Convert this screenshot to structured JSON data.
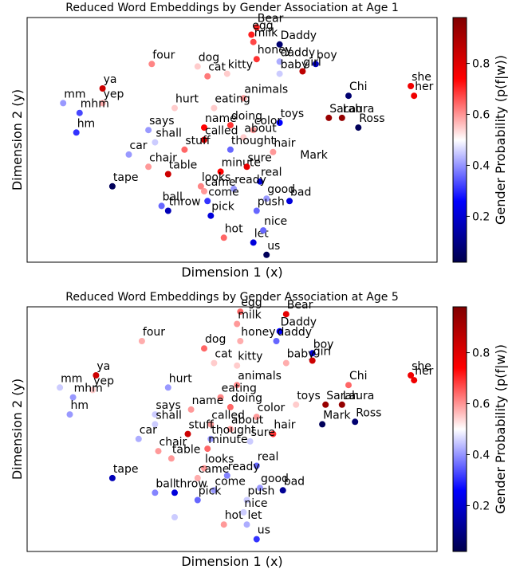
{
  "chart_data": [
    {
      "type": "scatter",
      "title": "Reduced Word Embeddings by Gender Association at Age 1",
      "xlabel": "Dimension 1 (x)",
      "ylabel": "Dimension 2 (y)",
      "xticks": [],
      "yticks": [],
      "colorbar": {
        "label": "Gender Probability (p(f|w))",
        "range": [
          0.02,
          0.98
        ],
        "ticks": [
          "0.2",
          "0.4",
          "0.6",
          "0.8"
        ],
        "colormap": "seismic"
      },
      "points": [
        {
          "word": "Bear",
          "x": 80,
          "y": 96,
          "p": 0.72
        },
        {
          "word": "egg",
          "x": 78.4,
          "y": 93,
          "p": 0.72
        },
        {
          "word": "Daddy",
          "x": 87,
          "y": 89,
          "p": 0.05
        },
        {
          "word": "milk",
          "x": 79,
          "y": 90,
          "p": 0.68
        },
        {
          "word": "four",
          "x": 48,
          "y": 81,
          "p": 0.62
        },
        {
          "word": "dog",
          "x": 62,
          "y": 80,
          "p": 0.55
        },
        {
          "word": "honey",
          "x": 80,
          "y": 83,
          "p": 0.7
        },
        {
          "word": "boy",
          "x": 98,
          "y": 81,
          "p": 0.15
        },
        {
          "word": "daddy",
          "x": 87,
          "y": 82,
          "p": 0.42
        },
        {
          "word": "cat",
          "x": 65,
          "y": 76,
          "p": 0.63
        },
        {
          "word": "kitty",
          "x": 71,
          "y": 77,
          "p": 0.55
        },
        {
          "word": "baby",
          "x": 87,
          "y": 77,
          "p": 0.45
        },
        {
          "word": "girl",
          "x": 94,
          "y": 78,
          "p": 0.88
        },
        {
          "word": "ya",
          "x": 33,
          "y": 71,
          "p": 0.85
        },
        {
          "word": "she",
          "x": 127,
          "y": 72,
          "p": 0.78
        },
        {
          "word": "yep",
          "x": 33,
          "y": 65,
          "p": 0.58
        },
        {
          "word": "mm",
          "x": 21,
          "y": 65,
          "p": 0.4
        },
        {
          "word": "hurt",
          "x": 55,
          "y": 63,
          "p": 0.55
        },
        {
          "word": "animals",
          "x": 76,
          "y": 67,
          "p": 0.6
        },
        {
          "word": "toys",
          "x": 87,
          "y": 57,
          "p": 0.25
        },
        {
          "word": "Chi",
          "x": 108,
          "y": 68,
          "p": 0.05
        },
        {
          "word": "her",
          "x": 128,
          "y": 68,
          "p": 0.78
        },
        {
          "word": "mhm",
          "x": 26,
          "y": 61,
          "p": 0.32
        },
        {
          "word": "eating",
          "x": 67,
          "y": 63,
          "p": 0.55
        },
        {
          "word": "Sarah",
          "x": 102,
          "y": 59,
          "p": 0.95
        },
        {
          "word": "Laura",
          "x": 106,
          "y": 59,
          "p": 0.96
        },
        {
          "word": "says",
          "x": 47,
          "y": 54,
          "p": 0.4
        },
        {
          "word": "name",
          "x": 64,
          "y": 55,
          "p": 0.75
        },
        {
          "word": "doing",
          "x": 72,
          "y": 56,
          "p": 0.7
        },
        {
          "word": "hm",
          "x": 25,
          "y": 53,
          "p": 0.3
        },
        {
          "word": "shall",
          "x": 49,
          "y": 49,
          "p": 0.45
        },
        {
          "word": "color",
          "x": 79,
          "y": 54,
          "p": 0.6
        },
        {
          "word": "Ross",
          "x": 111,
          "y": 55,
          "p": 0.02
        },
        {
          "word": "called",
          "x": 64,
          "y": 50,
          "p": 0.85
        },
        {
          "word": "about",
          "x": 76,
          "y": 51,
          "p": 0.55
        },
        {
          "word": "hair",
          "x": 85,
          "y": 45,
          "p": 0.6
        },
        {
          "word": "car",
          "x": 41,
          "y": 44,
          "p": 0.4
        },
        {
          "word": "stuff",
          "x": 58,
          "y": 46,
          "p": 0.65
        },
        {
          "word": "thought",
          "x": 72,
          "y": 46,
          "p": 0.35
        },
        {
          "word": "Mark",
          "x": 93,
          "y": 40,
          "p": 0.5
        },
        {
          "word": "chair",
          "x": 47,
          "y": 39,
          "p": 0.6
        },
        {
          "word": "minute",
          "x": 69,
          "y": 37,
          "p": 0.75
        },
        {
          "word": "sure",
          "x": 77,
          "y": 39,
          "p": 0.8
        },
        {
          "word": "table",
          "x": 53,
          "y": 36,
          "p": 0.85
        },
        {
          "word": "looks",
          "x": 63,
          "y": 31,
          "p": 0.62
        },
        {
          "word": "real",
          "x": 81,
          "y": 33,
          "p": 0.2
        },
        {
          "word": "tape",
          "x": 36,
          "y": 31,
          "p": 0.02
        },
        {
          "word": "came",
          "x": 64,
          "y": 29,
          "p": 0.6
        },
        {
          "word": "ready",
          "x": 73,
          "y": 30,
          "p": 0.4
        },
        {
          "word": "good",
          "x": 83,
          "y": 26,
          "p": 0.4
        },
        {
          "word": "ball",
          "x": 51,
          "y": 23,
          "p": 0.35
        },
        {
          "word": "come",
          "x": 65,
          "y": 25,
          "p": 0.3
        },
        {
          "word": "bad",
          "x": 90,
          "y": 25,
          "p": 0.2
        },
        {
          "word": "throw",
          "x": 53,
          "y": 21,
          "p": 0.15
        },
        {
          "word": "pick",
          "x": 66,
          "y": 19,
          "p": 0.2
        },
        {
          "word": "push",
          "x": 80,
          "y": 21,
          "p": 0.35
        },
        {
          "word": "hot",
          "x": 70,
          "y": 10,
          "p": 0.65
        },
        {
          "word": "let",
          "x": 79,
          "y": 8,
          "p": 0.2
        },
        {
          "word": "nice",
          "x": 82,
          "y": 13,
          "p": 0.35
        },
        {
          "word": "us",
          "x": 83,
          "y": 3,
          "p": 0.02
        }
      ]
    },
    {
      "type": "scatter",
      "title": "Reduced Word Embeddings by Gender Association at Age 5",
      "xlabel": "Dimension 1 (x)",
      "ylabel": "Dimension 2 (y)",
      "xticks": [],
      "yticks": [],
      "colorbar": {
        "label": "Gender Probability (p(f|w))",
        "range": [
          0.02,
          0.98
        ],
        "ticks": [
          "0.2",
          "0.4",
          "0.6",
          "0.8"
        ],
        "colormap": "seismic"
      },
      "points": [
        {
          "word": "Bear",
          "x": 89,
          "y": 97,
          "p": 0.8
        },
        {
          "word": "egg",
          "x": 75,
          "y": 98,
          "p": 0.65
        },
        {
          "word": "Daddy",
          "x": 87,
          "y": 90,
          "p": 0.25
        },
        {
          "word": "milk",
          "x": 74,
          "y": 93,
          "p": 0.6
        },
        {
          "word": "four",
          "x": 45,
          "y": 86,
          "p": 0.58
        },
        {
          "word": "dog",
          "x": 64,
          "y": 83,
          "p": 0.65
        },
        {
          "word": "honey",
          "x": 75,
          "y": 86,
          "p": 0.58
        },
        {
          "word": "boy",
          "x": 97,
          "y": 81,
          "p": 0.2
        },
        {
          "word": "daddy",
          "x": 86,
          "y": 86,
          "p": 0.35
        },
        {
          "word": "cat",
          "x": 67,
          "y": 77,
          "p": 0.55
        },
        {
          "word": "kitty",
          "x": 74,
          "y": 76,
          "p": 0.55
        },
        {
          "word": "baby",
          "x": 89,
          "y": 77,
          "p": 0.58
        },
        {
          "word": "girl",
          "x": 97,
          "y": 78,
          "p": 0.85
        },
        {
          "word": "ya",
          "x": 31,
          "y": 72,
          "p": 0.85
        },
        {
          "word": "she",
          "x": 127,
          "y": 72,
          "p": 0.78
        },
        {
          "word": "yep",
          "x": 30,
          "y": 66,
          "p": 0.55
        },
        {
          "word": "mm",
          "x": 20,
          "y": 67,
          "p": 0.45
        },
        {
          "word": "hurt",
          "x": 53,
          "y": 67,
          "p": 0.4
        },
        {
          "word": "animals",
          "x": 74,
          "y": 68,
          "p": 0.62
        },
        {
          "word": "toys",
          "x": 92,
          "y": 60,
          "p": 0.55
        },
        {
          "word": "Chi",
          "x": 108,
          "y": 68,
          "p": 0.65
        },
        {
          "word": "her",
          "x": 128,
          "y": 70,
          "p": 0.78
        },
        {
          "word": "mhm",
          "x": 24,
          "y": 63,
          "p": 0.4
        },
        {
          "word": "eating",
          "x": 69,
          "y": 63,
          "p": 0.62
        },
        {
          "word": "Sarah",
          "x": 101,
          "y": 60,
          "p": 0.95
        },
        {
          "word": "Laura",
          "x": 106,
          "y": 60,
          "p": 0.96
        },
        {
          "word": "says",
          "x": 49,
          "y": 56,
          "p": 0.45
        },
        {
          "word": "name",
          "x": 60,
          "y": 58,
          "p": 0.6
        },
        {
          "word": "doing",
          "x": 72,
          "y": 59,
          "p": 0.65
        },
        {
          "word": "hm",
          "x": 23,
          "y": 56,
          "p": 0.4
        },
        {
          "word": "shall",
          "x": 49,
          "y": 52,
          "p": 0.45
        },
        {
          "word": "color",
          "x": 80,
          "y": 55,
          "p": 0.6
        },
        {
          "word": "Mark",
          "x": 100,
          "y": 52,
          "p": 0.02
        },
        {
          "word": "Ross",
          "x": 110,
          "y": 53,
          "p": 0.05
        },
        {
          "word": "called",
          "x": 66,
          "y": 52,
          "p": 0.6
        },
        {
          "word": "about",
          "x": 72,
          "y": 50,
          "p": 0.6
        },
        {
          "word": "hair",
          "x": 85,
          "y": 48,
          "p": 0.7
        },
        {
          "word": "car",
          "x": 44,
          "y": 46,
          "p": 0.42
        },
        {
          "word": "stuff",
          "x": 59,
          "y": 48,
          "p": 0.85
        },
        {
          "word": "thought",
          "x": 66,
          "y": 46,
          "p": 0.4
        },
        {
          "word": "chair",
          "x": 50,
          "y": 41,
          "p": 0.6
        },
        {
          "word": "minute",
          "x": 65,
          "y": 42,
          "p": 0.65
        },
        {
          "word": "sure",
          "x": 78,
          "y": 45,
          "p": 0.45
        },
        {
          "word": "table",
          "x": 54,
          "y": 38,
          "p": 0.6
        },
        {
          "word": "looks",
          "x": 64,
          "y": 34,
          "p": 0.6
        },
        {
          "word": "real",
          "x": 80,
          "y": 35,
          "p": 0.35
        },
        {
          "word": "tape",
          "x": 36,
          "y": 30,
          "p": 0.15
        },
        {
          "word": "came",
          "x": 62,
          "y": 30,
          "p": 0.58
        },
        {
          "word": "ready",
          "x": 71,
          "y": 31,
          "p": 0.38
        },
        {
          "word": "good",
          "x": 81,
          "y": 26,
          "p": 0.4
        },
        {
          "word": "ball",
          "x": 49,
          "y": 24,
          "p": 0.38
        },
        {
          "word": "come",
          "x": 67,
          "y": 25,
          "p": 0.4
        },
        {
          "word": "bad",
          "x": 88,
          "y": 25,
          "p": 0.1
        },
        {
          "word": "throw",
          "x": 55,
          "y": 24,
          "p": 0.2
        },
        {
          "word": "pick",
          "x": 62,
          "y": 21,
          "p": 0.35
        },
        {
          "word": "push",
          "x": 77,
          "y": 21,
          "p": 0.45
        },
        {
          "word": "hot",
          "x": 70,
          "y": 11,
          "p": 0.6
        },
        {
          "word": "let",
          "x": 77,
          "y": 11,
          "p": 0.42
        },
        {
          "word": "nice",
          "x": 76,
          "y": 16,
          "p": 0.45
        },
        {
          "word": "us",
          "x": 80,
          "y": 5,
          "p": 0.3
        },
        {
          "word": "",
          "x": 55,
          "y": 14,
          "p": 0.45
        }
      ]
    }
  ]
}
